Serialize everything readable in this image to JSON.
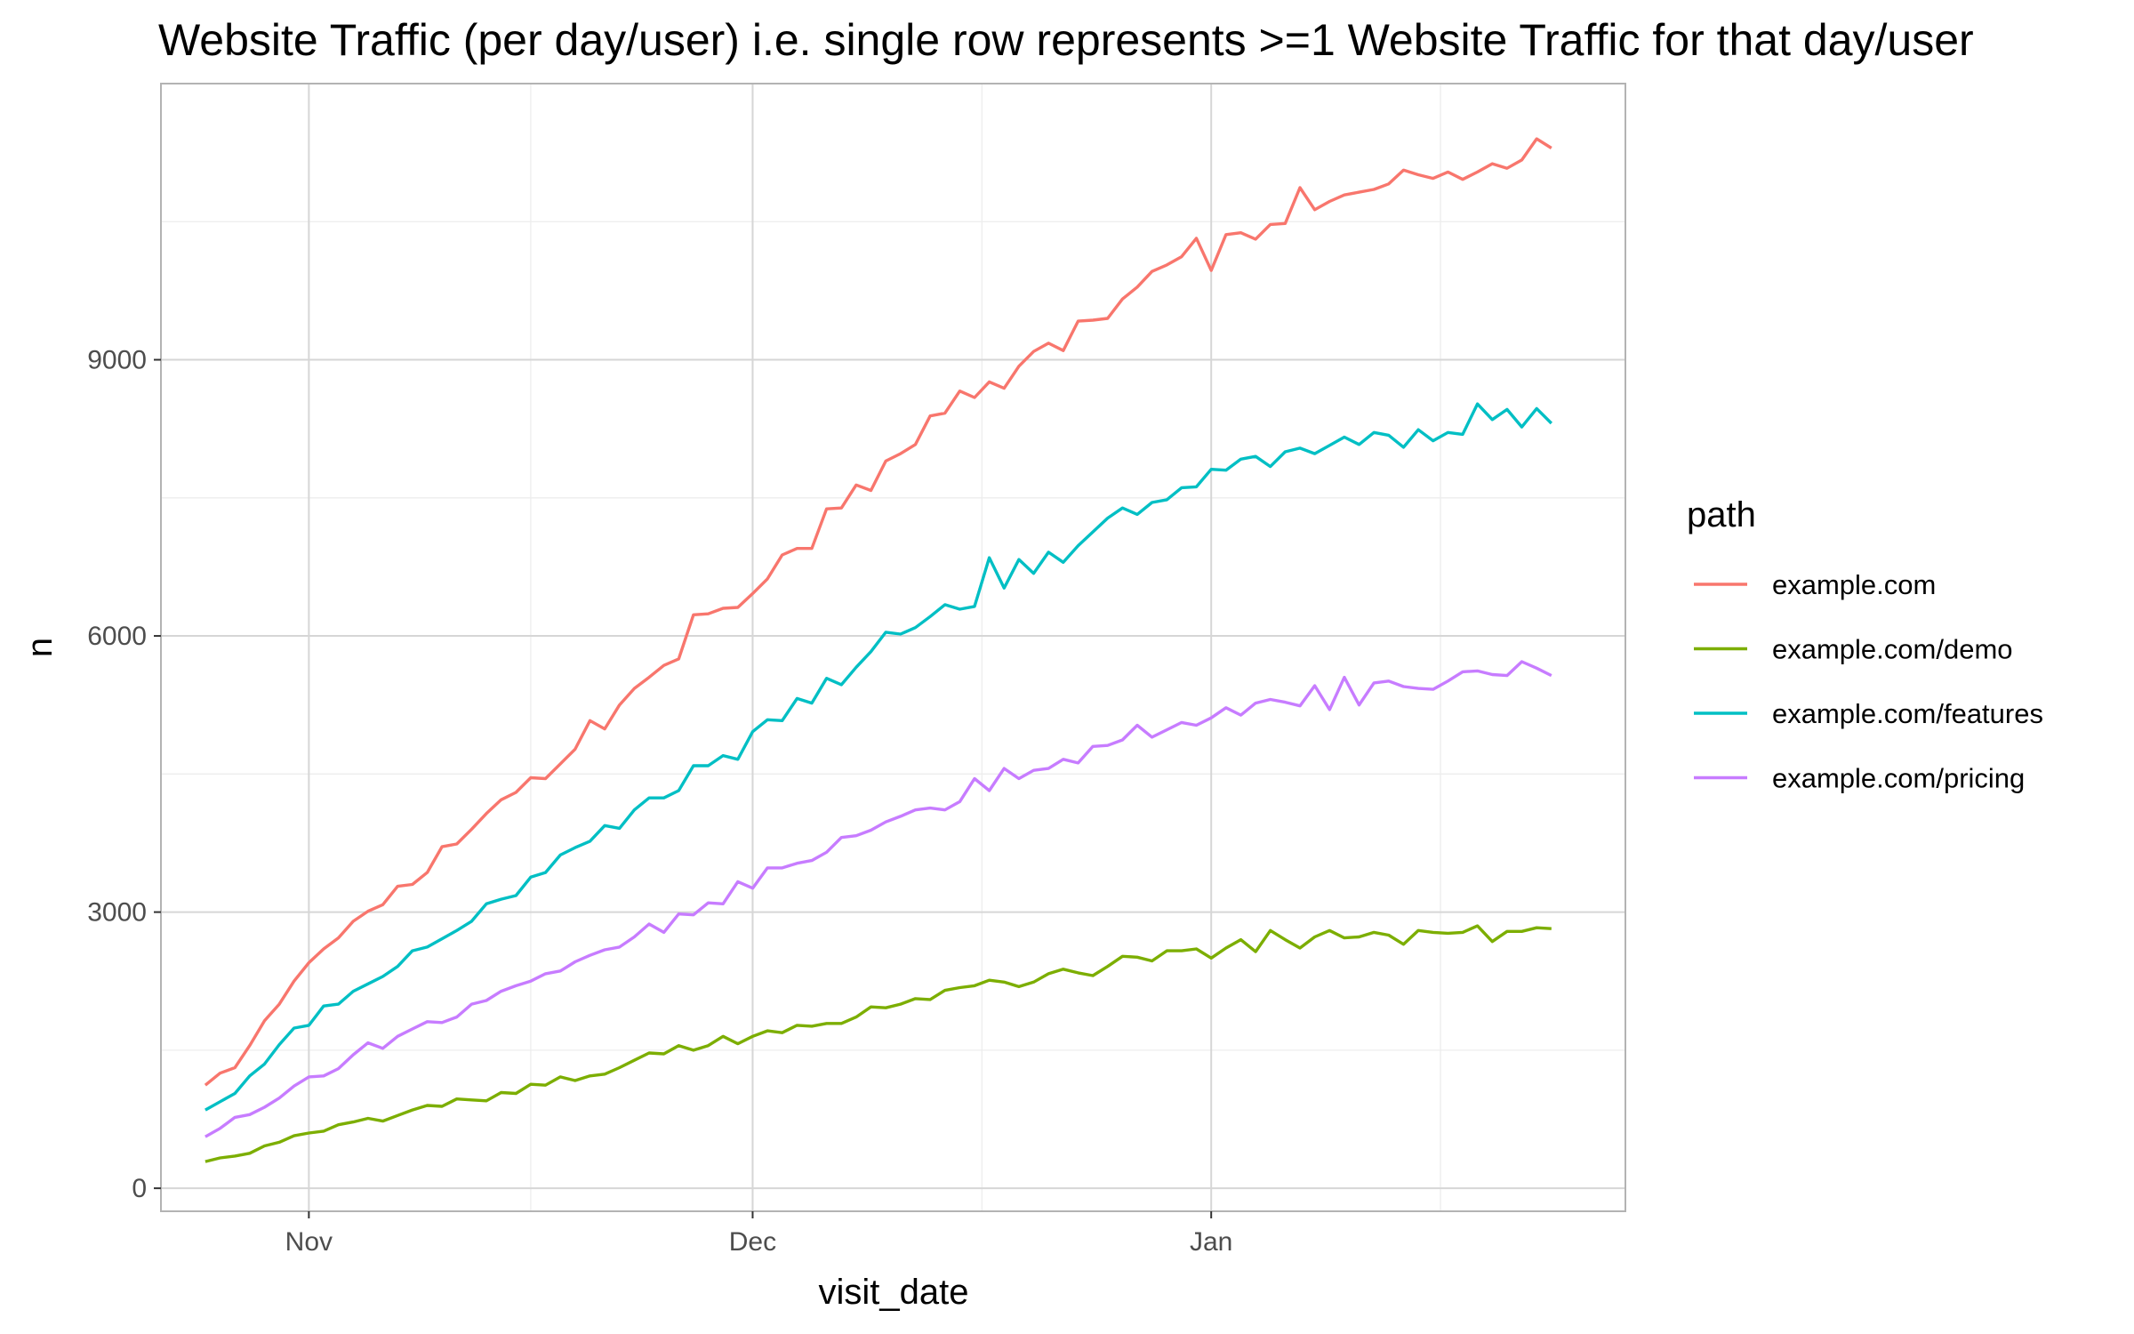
{
  "chart_data": {
    "type": "line",
    "title": "Website Traffic (per day/user) i.e. single row represents >=1 Website Traffic for that day/user",
    "xlabel": "visit_date",
    "ylabel": "n",
    "x_start": "2023-10-25",
    "x_ticks": [
      {
        "label": "Nov",
        "date": "2023-11-01"
      },
      {
        "label": "Dec",
        "date": "2023-12-01"
      },
      {
        "label": "Jan",
        "date": "2024-01-01"
      }
    ],
    "y_ticks": [
      0,
      3000,
      6000,
      9000
    ],
    "xlim": [
      "2023-10-22",
      "2024-01-29"
    ],
    "ylim": [
      -250,
      12000
    ],
    "grid": true,
    "legend_title": "path",
    "legend_position": "right",
    "series": [
      {
        "name": "example.com",
        "color": "#F8766D",
        "values": [
          1120,
          1250,
          1310,
          1550,
          1820,
          2000,
          2250,
          2450,
          2600,
          2720,
          2900,
          3010,
          3080,
          3280,
          3300,
          3430,
          3710,
          3740,
          3900,
          4070,
          4220,
          4300,
          4460,
          4450,
          4610,
          4770,
          5080,
          4990,
          5250,
          5430,
          5550,
          5680,
          5750,
          6230,
          6240,
          6300,
          6310,
          6460,
          6620,
          6880,
          6950,
          6950,
          7380,
          7390,
          7640,
          7580,
          7900,
          7980,
          8080,
          8390,
          8420,
          8660,
          8590,
          8760,
          8690,
          8930,
          9090,
          9180,
          9100,
          9420,
          9430,
          9450,
          9660,
          9790,
          9960,
          10030,
          10120,
          10320,
          9970,
          10360,
          10380,
          10310,
          10470,
          10480,
          10870,
          10630,
          10720,
          10790,
          10820,
          10850,
          10910,
          11060,
          11010,
          10970,
          11040,
          10960,
          11040,
          11130,
          11080,
          11170,
          11400,
          11300
        ]
      },
      {
        "name": "example.com/demo",
        "color": "#7CAE00",
        "values": [
          290,
          330,
          350,
          380,
          460,
          500,
          570,
          600,
          620,
          690,
          720,
          760,
          730,
          790,
          850,
          900,
          890,
          970,
          960,
          950,
          1040,
          1030,
          1130,
          1120,
          1210,
          1170,
          1220,
          1240,
          1310,
          1390,
          1470,
          1460,
          1550,
          1500,
          1550,
          1650,
          1570,
          1650,
          1710,
          1690,
          1770,
          1760,
          1790,
          1790,
          1860,
          1970,
          1960,
          2000,
          2060,
          2050,
          2150,
          2180,
          2200,
          2260,
          2240,
          2190,
          2240,
          2330,
          2380,
          2340,
          2310,
          2410,
          2520,
          2510,
          2470,
          2580,
          2580,
          2600,
          2500,
          2610,
          2700,
          2570,
          2800,
          2700,
          2610,
          2730,
          2800,
          2720,
          2730,
          2780,
          2750,
          2650,
          2800,
          2780,
          2770,
          2780,
          2850,
          2680,
          2790,
          2790,
          2830,
          2820
        ]
      },
      {
        "name": "example.com/features",
        "color": "#00BFC4",
        "values": [
          850,
          940,
          1030,
          1220,
          1350,
          1560,
          1740,
          1770,
          1980,
          2000,
          2140,
          2220,
          2300,
          2410,
          2580,
          2620,
          2710,
          2800,
          2900,
          3090,
          3140,
          3180,
          3380,
          3430,
          3620,
          3700,
          3770,
          3940,
          3910,
          4110,
          4240,
          4240,
          4320,
          4590,
          4590,
          4700,
          4660,
          4960,
          5090,
          5080,
          5320,
          5270,
          5540,
          5470,
          5660,
          5830,
          6040,
          6020,
          6090,
          6210,
          6340,
          6290,
          6320,
          6850,
          6520,
          6830,
          6680,
          6910,
          6800,
          6980,
          7130,
          7280,
          7390,
          7320,
          7450,
          7480,
          7610,
          7620,
          7810,
          7800,
          7920,
          7950,
          7840,
          8000,
          8040,
          7980,
          8070,
          8160,
          8080,
          8210,
          8180,
          8050,
          8240,
          8120,
          8210,
          8190,
          8520,
          8350,
          8460,
          8270,
          8470,
          8310
        ]
      },
      {
        "name": "example.com/pricing",
        "color": "#C77CFF",
        "values": [
          560,
          650,
          770,
          800,
          880,
          980,
          1110,
          1210,
          1220,
          1300,
          1450,
          1580,
          1520,
          1650,
          1730,
          1810,
          1800,
          1860,
          2000,
          2040,
          2140,
          2200,
          2250,
          2330,
          2360,
          2460,
          2530,
          2590,
          2620,
          2730,
          2870,
          2780,
          2980,
          2970,
          3100,
          3090,
          3330,
          3260,
          3480,
          3480,
          3530,
          3560,
          3650,
          3810,
          3830,
          3890,
          3980,
          4040,
          4110,
          4130,
          4110,
          4200,
          4450,
          4320,
          4560,
          4450,
          4540,
          4560,
          4660,
          4620,
          4800,
          4810,
          4870,
          5030,
          4900,
          4980,
          5060,
          5030,
          5110,
          5220,
          5140,
          5270,
          5310,
          5280,
          5240,
          5460,
          5200,
          5550,
          5250,
          5490,
          5510,
          5450,
          5430,
          5420,
          5510,
          5610,
          5620,
          5580,
          5570,
          5720,
          5650,
          5570
        ]
      }
    ]
  }
}
